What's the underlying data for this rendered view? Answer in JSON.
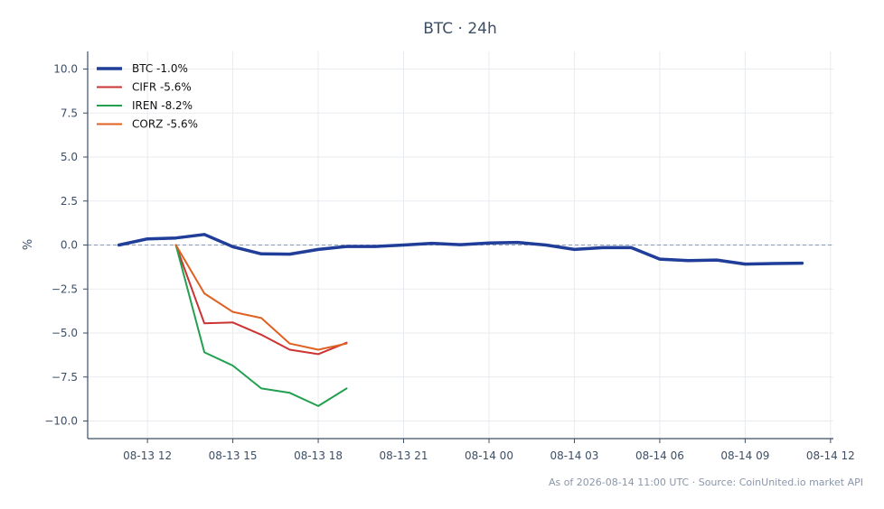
{
  "chart_data": {
    "type": "line",
    "title": "BTC · 24h",
    "ylabel": "%",
    "xlabel": "",
    "x_tick_labels": [
      "08-13 12",
      "08-13 15",
      "08-13 18",
      "08-13 21",
      "08-14 00",
      "08-14 03",
      "08-14 06",
      "08-14 09",
      "08-14 12"
    ],
    "x_ticks_hours": [
      0,
      3,
      6,
      9,
      12,
      15,
      18,
      21,
      24
    ],
    "xlim_hours": [
      -2.1,
      24.1
    ],
    "ylim": [
      -11,
      11
    ],
    "y_ticks": [
      10.0,
      7.5,
      5.0,
      2.5,
      0.0,
      -2.5,
      -5.0,
      -7.5,
      -10.0
    ],
    "y_tick_labels": [
      "10.0",
      "7.5",
      "5.0",
      "2.5",
      "0.0",
      "−2.5",
      "−5.0",
      "−7.5",
      "−10.0"
    ],
    "grid": true,
    "zero_line": true,
    "legend_position": "top-left",
    "series": [
      {
        "name": "BTC -1.0%",
        "color": "#1f3d99",
        "width": 3.5,
        "x": [
          -1,
          0,
          1,
          2,
          3,
          4,
          5,
          6,
          7,
          8,
          9,
          10,
          11,
          12,
          13,
          14,
          15,
          16,
          17,
          18,
          19,
          20,
          21,
          22,
          23
        ],
        "y": [
          0.0,
          0.35,
          0.4,
          0.6,
          -0.1,
          -0.5,
          -0.52,
          -0.25,
          -0.08,
          -0.08,
          0.0,
          0.1,
          0.02,
          0.12,
          0.15,
          0.0,
          -0.25,
          -0.15,
          -0.15,
          -0.8,
          -0.88,
          -0.85,
          -1.08,
          -1.05,
          -1.03
        ]
      },
      {
        "name": "CIFR -5.6%",
        "color": "#cc3333",
        "width": 2,
        "x": [
          1,
          2,
          3,
          4,
          5,
          6,
          7
        ],
        "y": [
          0.0,
          -4.45,
          -4.4,
          -5.1,
          -5.95,
          -6.2,
          -5.55
        ]
      },
      {
        "name": "IREN -8.2%",
        "color": "#22a050",
        "width": 2,
        "x": [
          1,
          2,
          3,
          4,
          5,
          6,
          7
        ],
        "y": [
          0.0,
          -6.1,
          -6.85,
          -8.15,
          -8.4,
          -9.15,
          -8.15
        ]
      },
      {
        "name": "CORZ -5.6%",
        "color": "#e06020",
        "width": 2,
        "x": [
          1,
          2,
          3,
          4,
          5,
          6,
          7
        ],
        "y": [
          0.0,
          -2.75,
          -3.8,
          -4.15,
          -5.6,
          -5.95,
          -5.6
        ]
      }
    ]
  },
  "footer": "As of 2026-08-14 11:00 UTC · Source: CoinUnited.io market API"
}
